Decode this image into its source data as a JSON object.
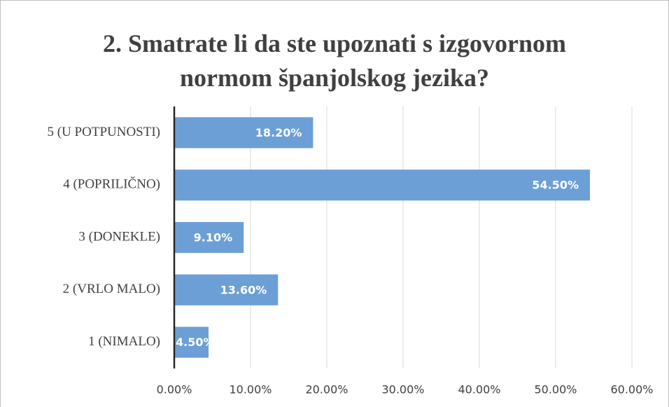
{
  "chart_data": {
    "type": "barh",
    "title": "2. Smatrate li da ste upoznati s izgovornom normom španjolskog jezika?",
    "categories": [
      "5 (U POTPUNOSTI)",
      "4 (POPRILIČNO)",
      "3 (DONEKLE)",
      "2 (VRLO MALO)",
      "1 (NIMALO)"
    ],
    "values": [
      18.2,
      54.5,
      9.1,
      13.6,
      4.5
    ],
    "value_labels": [
      "18.20%",
      "54.50%",
      "9.10%",
      "13.60%",
      "4.50%"
    ],
    "color": "#6c9fd6",
    "xlim": [
      0,
      60
    ],
    "xticks": [
      {
        "value": 0,
        "label": "0.00%"
      },
      {
        "value": 10,
        "label": "10.00%"
      },
      {
        "value": 20,
        "label": "20.00%"
      },
      {
        "value": 30,
        "label": "30.00%"
      },
      {
        "value": 40,
        "label": "40.00%"
      },
      {
        "value": 50,
        "label": "50.00%"
      },
      {
        "value": 60,
        "label": "60.00%"
      }
    ],
    "grid": true
  }
}
